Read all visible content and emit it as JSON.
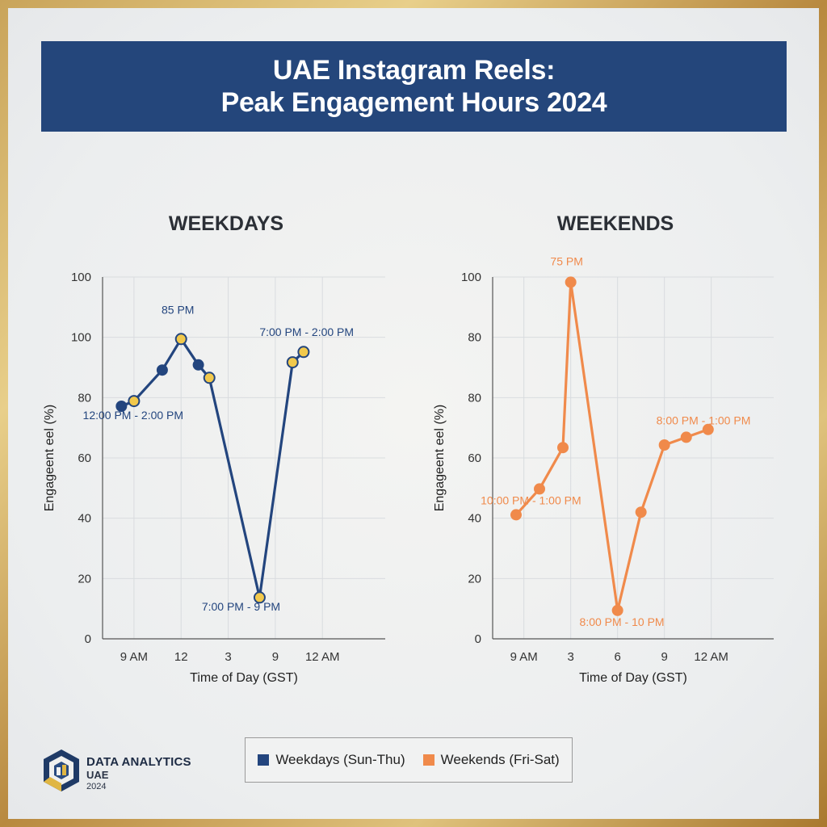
{
  "title": {
    "line1": "UAE Instagram Reels:",
    "line2": "Peak Engagement Hours 2024"
  },
  "legend": {
    "weekdays": "Weekdays (Sun-Thu)",
    "weekends": "Weekends (Fri-Sat)"
  },
  "brand": {
    "name": "DATA ANALYTICS",
    "sub": "UAE",
    "year": "2024",
    "icon": "hexagon-logo-icon"
  },
  "colors": {
    "banner": "#24467b",
    "weekdays_line": "#23457e",
    "weekdays_marker_fill": "#f2c94c",
    "weekends_line": "#f08a4b",
    "frame_gold": "#c9a45a"
  },
  "chart_data": [
    {
      "type": "line",
      "title": "WEEKDAYS",
      "xlabel": "Time of Day (GST)",
      "ylabel": "Engageent eel (%)",
      "xlim": [
        7,
        25
      ],
      "ylim": [
        0,
        140
      ],
      "x_ticks": [
        {
          "value": 9,
          "label": "9 AM"
        },
        {
          "value": 12,
          "label": "12"
        },
        {
          "value": 15,
          "label": "3"
        },
        {
          "value": 18,
          "label": "9"
        },
        {
          "value": 21,
          "label": "12 AM"
        }
      ],
      "y_tick_labels": [
        "0",
        "20",
        "40",
        "60",
        "80",
        "100",
        "100"
      ],
      "grid": true,
      "series": [
        {
          "name": "Weekdays (Sun-Thu)",
          "color": "#23457e",
          "points": [
            {
              "x": 8.2,
              "y": 90,
              "marker": "dark"
            },
            {
              "x": 9.0,
              "y": 92,
              "marker": "yellow"
            },
            {
              "x": 10.8,
              "y": 104,
              "marker": "dark"
            },
            {
              "x": 12.0,
              "y": 116,
              "marker": "yellow"
            },
            {
              "x": 13.1,
              "y": 106,
              "marker": "dark"
            },
            {
              "x": 13.8,
              "y": 101,
              "marker": "yellow"
            },
            {
              "x": 17.0,
              "y": 16,
              "marker": "yellow"
            },
            {
              "x": 19.1,
              "y": 107,
              "marker": "yellow"
            },
            {
              "x": 19.8,
              "y": 111,
              "marker": "yellow"
            }
          ]
        }
      ],
      "annotations": [
        {
          "text": "85 PM",
          "x": 12.0,
          "y": 122
        },
        {
          "text": "7:00 PM - 2:00 PM",
          "x": 19.0,
          "y": 114
        },
        {
          "text": "12:00 PM - 2:00 PM",
          "x": 6.0,
          "y": 85
        },
        {
          "text": "7:00 PM - 9 PM",
          "x": 14.5,
          "y": 11
        }
      ]
    },
    {
      "type": "line",
      "title": "WEEKENDS",
      "xlabel": "Time of Day (GST)",
      "ylabel": "Engageent eel (%)",
      "xlim": [
        7,
        25
      ],
      "ylim": [
        0,
        140
      ],
      "x_ticks": [
        {
          "value": 9,
          "label": "9 AM"
        },
        {
          "value": 12,
          "label": "3"
        },
        {
          "value": 15,
          "label": "6"
        },
        {
          "value": 18,
          "label": "9"
        },
        {
          "value": 21,
          "label": "12 AM"
        }
      ],
      "y_tick_labels": [
        "0",
        "20",
        "40",
        "60",
        "80",
        "80",
        "100"
      ],
      "grid": true,
      "series": [
        {
          "name": "Weekends (Fri-Sat)",
          "color": "#f08a4b",
          "points": [
            {
              "x": 8.5,
              "y": 48
            },
            {
              "x": 10.0,
              "y": 58
            },
            {
              "x": 11.5,
              "y": 74
            },
            {
              "x": 12.0,
              "y": 138
            },
            {
              "x": 15.0,
              "y": 11
            },
            {
              "x": 16.5,
              "y": 49
            },
            {
              "x": 18.0,
              "y": 75
            },
            {
              "x": 19.4,
              "y": 78
            },
            {
              "x": 20.8,
              "y": 81
            }
          ]
        }
      ],
      "annotations": [
        {
          "text": "75 PM",
          "x": 12.0,
          "y": 142
        },
        {
          "text": "8:00 PM - 1:00 PM",
          "x": 20.5,
          "y": 83
        },
        {
          "text": "10:00 PM - 1:00 PM",
          "x": 8.3,
          "y": 52
        },
        {
          "text": "8:00 PM - 10 PM",
          "x": 15.2,
          "y": 5
        }
      ]
    }
  ]
}
